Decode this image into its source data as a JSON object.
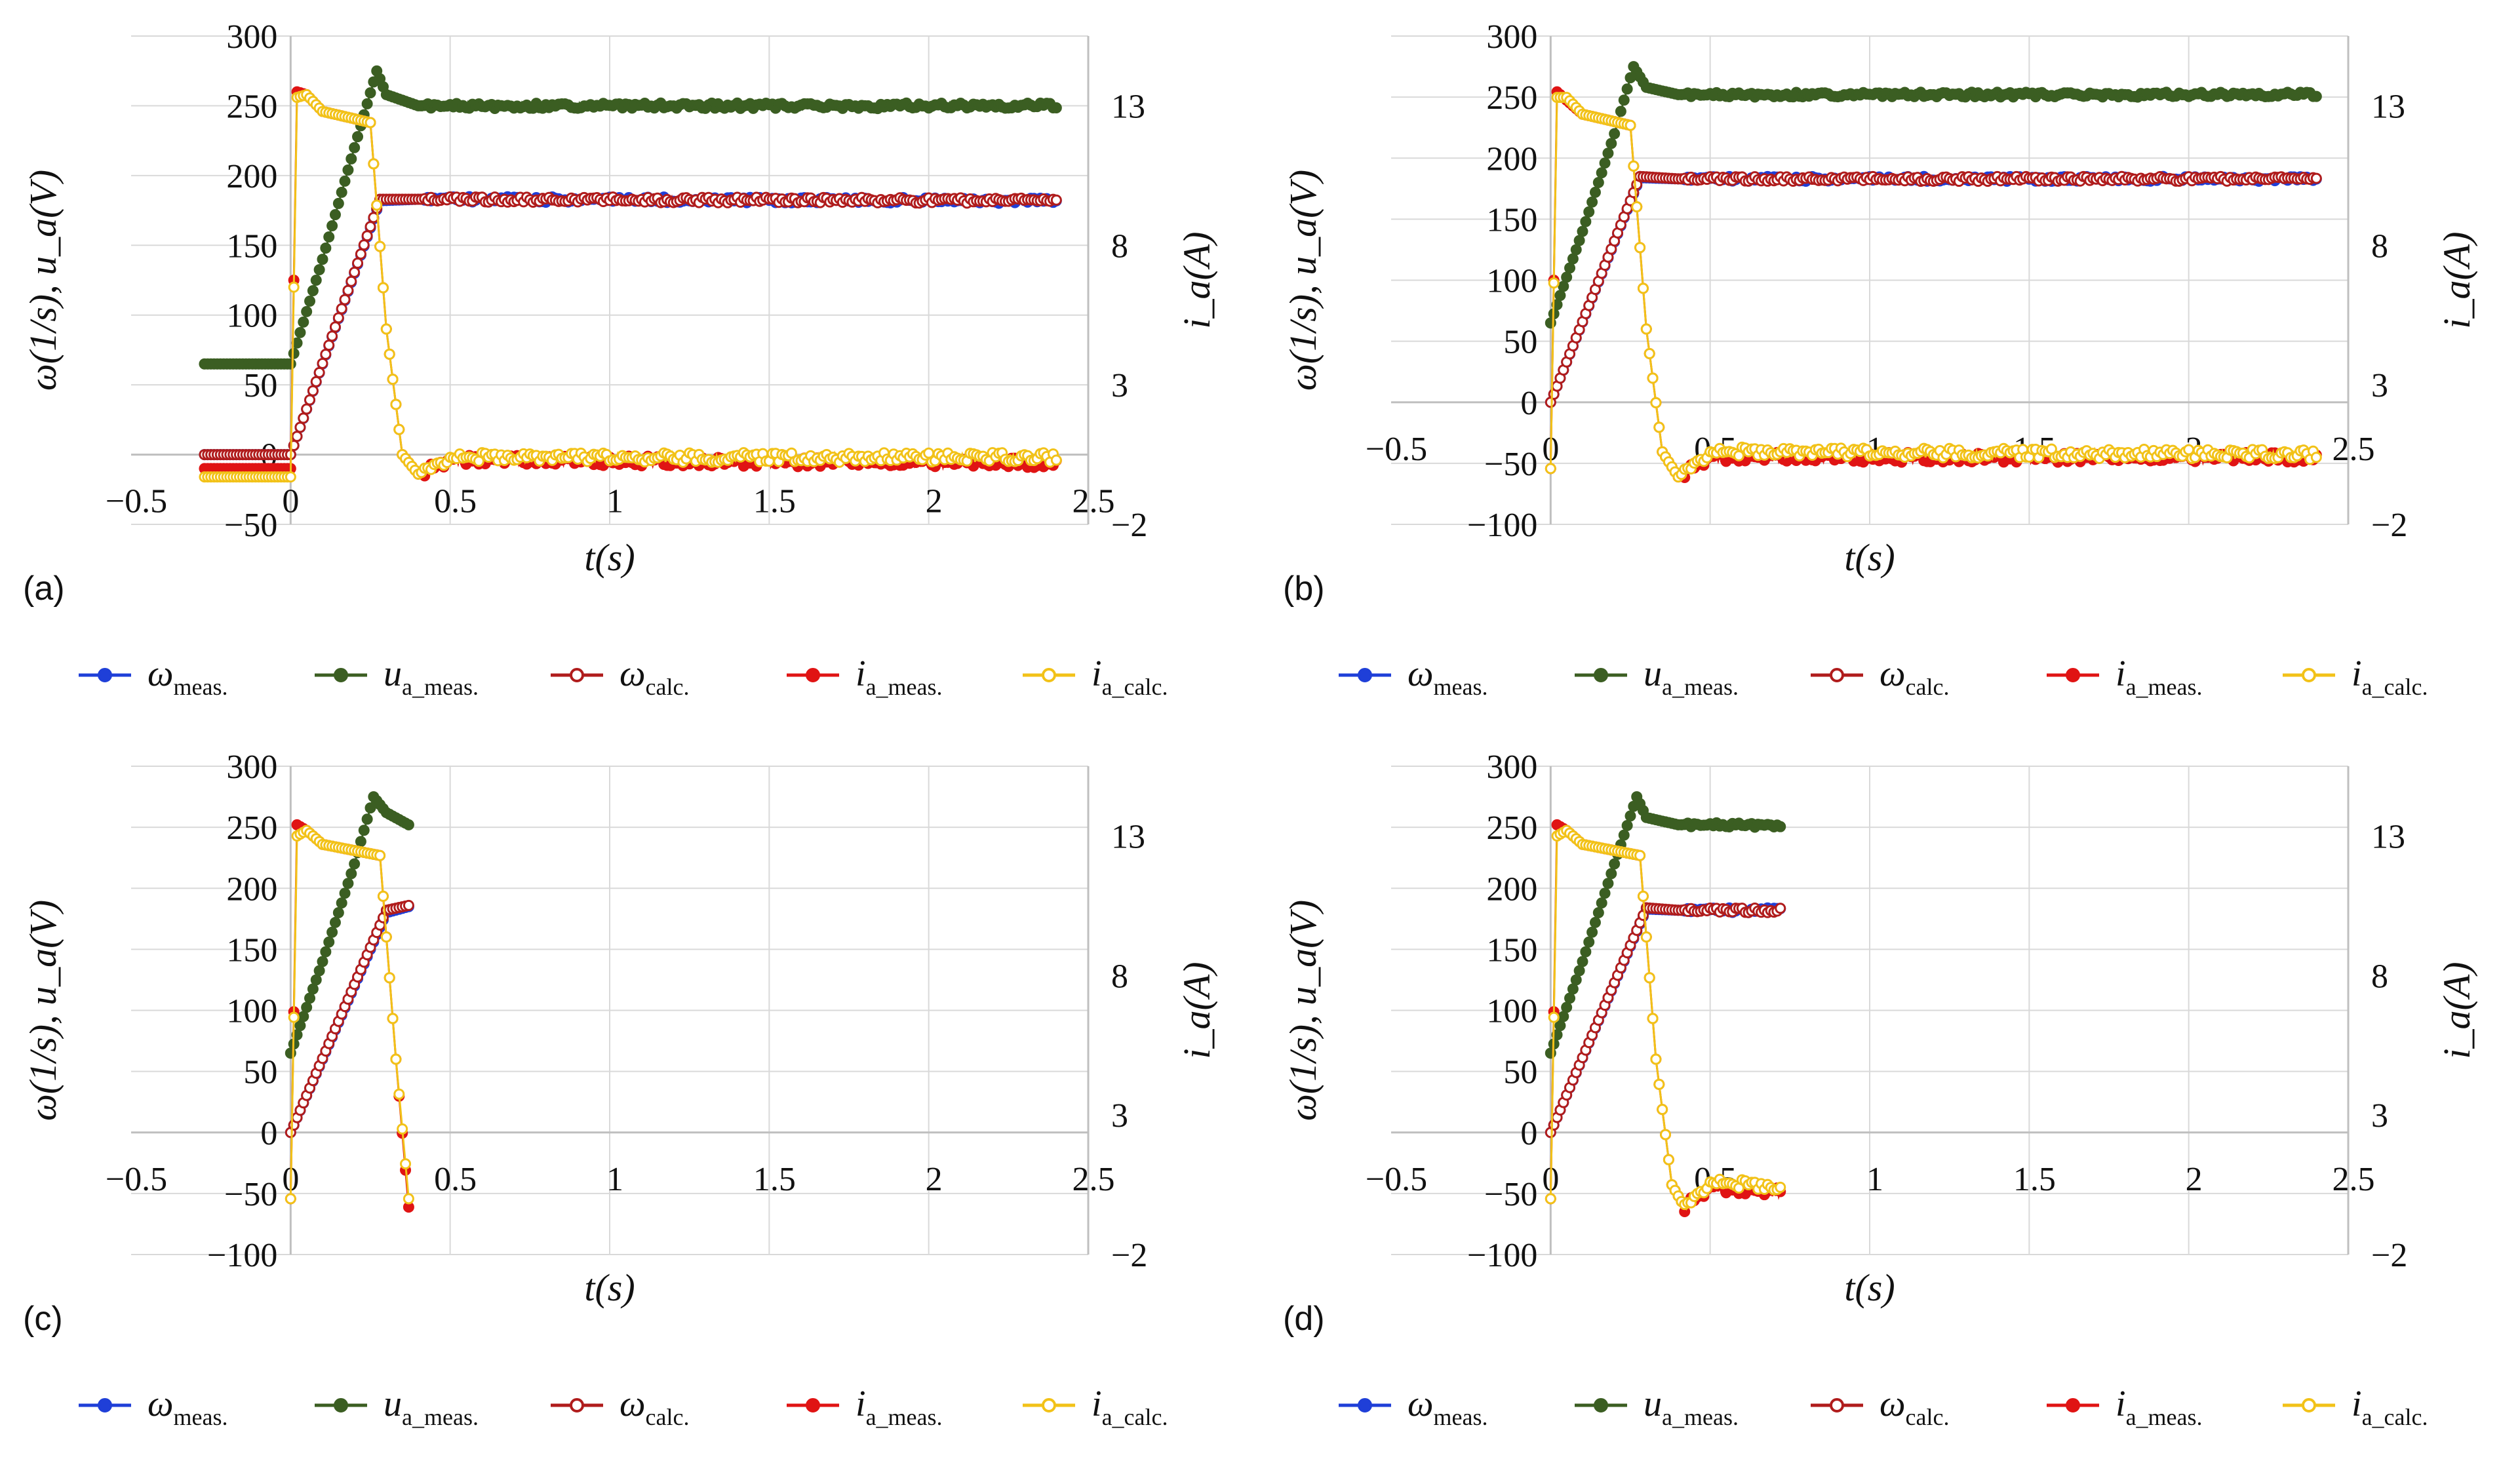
{
  "chart_data": [
    {
      "panel_label": "(a)",
      "type": "line",
      "xlabel": "t(s)",
      "ylabel": "ω(1/s), u_a(V)",
      "y2label": "i_a(A)",
      "xlim": [
        -0.5,
        2.5
      ],
      "ylim": [
        -50,
        300
      ],
      "y2lim": [
        -2,
        15.5
      ],
      "x_ticks": [
        "−0.5",
        "0",
        "0.5",
        "1",
        "1.5",
        "2",
        "2.5"
      ],
      "y_ticks": [
        "−50",
        "0",
        "50",
        "100",
        "150",
        "200",
        "250",
        "300"
      ],
      "y2_ticks": [
        "−2",
        "3",
        "8",
        "13"
      ],
      "t_end": 2.4,
      "t_start": -0.27,
      "series": [
        {
          "name": "ω_meas.",
          "color": "#1f3fd8",
          "axis": "left",
          "points": [
            [
              -0.27,
              0
            ],
            [
              0,
              0
            ],
            [
              0.28,
              182
            ],
            [
              0.4,
              183
            ],
            [
              2.4,
              182
            ]
          ]
        },
        {
          "name": "u_a_meas.",
          "color": "#3b5e22",
          "axis": "left",
          "points": [
            [
              0,
              65
            ],
            [
              0.1,
              140
            ],
            [
              0.2,
              220
            ],
            [
              0.27,
              275
            ],
            [
              0.3,
              258
            ],
            [
              0.4,
              250
            ],
            [
              2.4,
              250
            ]
          ]
        },
        {
          "name": "ω_calc.",
          "color": "#b01c1c",
          "axis": "left",
          "points": [
            [
              -0.27,
              0
            ],
            [
              0,
              0
            ],
            [
              0.28,
              183
            ],
            [
              0.4,
              183
            ],
            [
              2.4,
              182
            ]
          ]
        },
        {
          "name": "i_a_meas.",
          "color": "#e01414",
          "axis": "right",
          "points": [
            [
              -0.27,
              0
            ],
            [
              0,
              0
            ],
            [
              0.02,
              13.5
            ],
            [
              0.05,
              13.4
            ],
            [
              0.1,
              12.8
            ],
            [
              0.25,
              12.4
            ],
            [
              0.3,
              5.0
            ],
            [
              0.35,
              0.5
            ],
            [
              0.4,
              -0.2
            ],
            [
              0.5,
              0.3
            ],
            [
              2.4,
              0.2
            ]
          ]
        },
        {
          "name": "i_a_calc.",
          "color": "#f2c218",
          "axis": "right",
          "points": [
            [
              -0.27,
              -0.3
            ],
            [
              0,
              -0.3
            ],
            [
              0.02,
              13.3
            ],
            [
              0.05,
              13.4
            ],
            [
              0.1,
              12.8
            ],
            [
              0.25,
              12.4
            ],
            [
              0.3,
              5.0
            ],
            [
              0.35,
              0.5
            ],
            [
              0.4,
              -0.2
            ],
            [
              0.5,
              0.4
            ],
            [
              2.4,
              0.4
            ]
          ]
        }
      ]
    },
    {
      "panel_label": "(b)",
      "type": "line",
      "xlabel": "t(s)",
      "ylabel": "ω(1/s), u_a(V)",
      "y2label": "i_a(A)",
      "xlim": [
        -0.5,
        2.5
      ],
      "ylim": [
        -100,
        300
      ],
      "y2lim": [
        -2,
        15.5
      ],
      "x_ticks": [
        "−0.5",
        "0",
        "0.5",
        "1",
        "1.5",
        "2",
        "2.5"
      ],
      "y_ticks": [
        "−100",
        "−50",
        "0",
        "50",
        "100",
        "150",
        "200",
        "250",
        "300"
      ],
      "y2_ticks": [
        "−2",
        "3",
        "8",
        "13"
      ],
      "t_end": 2.4,
      "t_start": 0,
      "series": [
        {
          "name": "ω_meas.",
          "color": "#1f3fd8",
          "axis": "left",
          "points": [
            [
              0,
              0
            ],
            [
              0.28,
              184
            ],
            [
              0.4,
              183
            ],
            [
              2.4,
              183
            ]
          ]
        },
        {
          "name": "u_a_meas.",
          "color": "#3b5e22",
          "axis": "left",
          "points": [
            [
              0,
              65
            ],
            [
              0.1,
              140
            ],
            [
              0.2,
              220
            ],
            [
              0.26,
              275
            ],
            [
              0.3,
              258
            ],
            [
              0.4,
              252
            ],
            [
              2.4,
              252
            ]
          ]
        },
        {
          "name": "ω_calc.",
          "color": "#b01c1c",
          "axis": "left",
          "points": [
            [
              0,
              0
            ],
            [
              0.28,
              185
            ],
            [
              0.4,
              183
            ],
            [
              2.4,
              183
            ]
          ]
        },
        {
          "name": "i_a_meas.",
          "color": "#e01414",
          "axis": "right",
          "points": [
            [
              0,
              0
            ],
            [
              0.02,
              13.5
            ],
            [
              0.05,
              13.2
            ],
            [
              0.1,
              12.7
            ],
            [
              0.25,
              12.3
            ],
            [
              0.3,
              5.0
            ],
            [
              0.35,
              0.6
            ],
            [
              0.4,
              -0.3
            ],
            [
              0.5,
              0.4
            ],
            [
              2.4,
              0.4
            ]
          ]
        },
        {
          "name": "i_a_calc.",
          "color": "#f2c218",
          "axis": "right",
          "points": [
            [
              0,
              0
            ],
            [
              0.02,
              13.3
            ],
            [
              0.05,
              13.3
            ],
            [
              0.1,
              12.7
            ],
            [
              0.25,
              12.3
            ],
            [
              0.3,
              5.0
            ],
            [
              0.35,
              0.6
            ],
            [
              0.4,
              -0.3
            ],
            [
              0.5,
              0.6
            ],
            [
              2.4,
              0.5
            ]
          ]
        }
      ]
    },
    {
      "panel_label": "(c)",
      "type": "line",
      "xlabel": "t(s)",
      "ylabel": "ω(1/s), u_a(V)",
      "y2label": "i_a(A)",
      "xlim": [
        -0.5,
        2.5
      ],
      "ylim": [
        -100,
        300
      ],
      "y2lim": [
        -2,
        15.5
      ],
      "x_ticks": [
        "−0.5",
        "0",
        "0.5",
        "1",
        "1.5",
        "2",
        "2.5"
      ],
      "y_ticks": [
        "−100",
        "−50",
        "0",
        "50",
        "100",
        "150",
        "200",
        "250",
        "300"
      ],
      "y2_ticks": [
        "−2",
        "3",
        "8",
        "13"
      ],
      "t_end": 0.37,
      "t_start": 0,
      "series": [
        {
          "name": "ω_meas.",
          "color": "#1f3fd8",
          "axis": "left",
          "points": [
            [
              0,
              0
            ],
            [
              0.3,
              180
            ],
            [
              0.37,
              185
            ]
          ]
        },
        {
          "name": "u_a_meas.",
          "color": "#3b5e22",
          "axis": "left",
          "points": [
            [
              0,
              65
            ],
            [
              0.1,
              140
            ],
            [
              0.2,
              220
            ],
            [
              0.26,
              275
            ],
            [
              0.3,
              262
            ],
            [
              0.37,
              252
            ]
          ]
        },
        {
          "name": "ω_calc.",
          "color": "#b01c1c",
          "axis": "left",
          "points": [
            [
              0,
              0
            ],
            [
              0.3,
              182
            ],
            [
              0.37,
              186
            ]
          ]
        },
        {
          "name": "i_a_meas.",
          "color": "#e01414",
          "axis": "right",
          "points": [
            [
              0,
              0
            ],
            [
              0.02,
              13.4
            ],
            [
              0.05,
              13.2
            ],
            [
              0.1,
              12.7
            ],
            [
              0.28,
              12.3
            ],
            [
              0.33,
              5.0
            ],
            [
              0.37,
              -0.3
            ]
          ]
        },
        {
          "name": "i_a_calc.",
          "color": "#f2c218",
          "axis": "right",
          "points": [
            [
              0,
              0
            ],
            [
              0.02,
              13.0
            ],
            [
              0.05,
              13.2
            ],
            [
              0.1,
              12.7
            ],
            [
              0.28,
              12.3
            ],
            [
              0.33,
              5.0
            ],
            [
              0.37,
              0.0
            ]
          ]
        }
      ]
    },
    {
      "panel_label": "(d)",
      "type": "line",
      "xlabel": "t(s)",
      "ylabel": "ω(1/s), u_a(V)",
      "y2label": "i_a(A)",
      "xlim": [
        -0.5,
        2.5
      ],
      "ylim": [
        -100,
        300
      ],
      "y2lim": [
        -2,
        15.5
      ],
      "x_ticks": [
        "−0.5",
        "0",
        "0.5",
        "1",
        "1.5",
        "2",
        "2.5"
      ],
      "y_ticks": [
        "−100",
        "−50",
        "0",
        "50",
        "100",
        "150",
        "200",
        "250",
        "300"
      ],
      "y2_ticks": [
        "−2",
        "3",
        "8",
        "13"
      ],
      "t_end": 0.72,
      "t_start": 0,
      "series": [
        {
          "name": "ω_meas.",
          "color": "#1f3fd8",
          "axis": "left",
          "points": [
            [
              0,
              0
            ],
            [
              0.3,
              183
            ],
            [
              0.4,
              182
            ],
            [
              0.72,
              182
            ]
          ]
        },
        {
          "name": "u_a_meas.",
          "color": "#3b5e22",
          "axis": "left",
          "points": [
            [
              0,
              65
            ],
            [
              0.1,
              140
            ],
            [
              0.2,
              220
            ],
            [
              0.27,
              275
            ],
            [
              0.3,
              258
            ],
            [
              0.4,
              252
            ],
            [
              0.72,
              252
            ]
          ]
        },
        {
          "name": "ω_calc.",
          "color": "#b01c1c",
          "axis": "left",
          "points": [
            [
              0,
              0
            ],
            [
              0.3,
              184
            ],
            [
              0.4,
              182
            ],
            [
              0.72,
              182
            ]
          ]
        },
        {
          "name": "i_a_meas.",
          "color": "#e01414",
          "axis": "right",
          "points": [
            [
              0,
              0
            ],
            [
              0.02,
              13.4
            ],
            [
              0.05,
              13.2
            ],
            [
              0.1,
              12.7
            ],
            [
              0.28,
              12.3
            ],
            [
              0.33,
              5.0
            ],
            [
              0.38,
              0.5
            ],
            [
              0.42,
              -0.3
            ],
            [
              0.5,
              0.4
            ],
            [
              0.72,
              0.2
            ]
          ]
        },
        {
          "name": "i_a_calc.",
          "color": "#f2c218",
          "axis": "right",
          "points": [
            [
              0,
              0
            ],
            [
              0.02,
              13.0
            ],
            [
              0.05,
              13.2
            ],
            [
              0.1,
              12.7
            ],
            [
              0.28,
              12.3
            ],
            [
              0.33,
              5.0
            ],
            [
              0.38,
              0.5
            ],
            [
              0.42,
              -0.3
            ],
            [
              0.5,
              0.6
            ],
            [
              0.72,
              0.4
            ]
          ]
        }
      ]
    }
  ],
  "legend": [
    {
      "symbol": "ω",
      "sub": "meas.",
      "color": "#1f3fd8",
      "marker": "filled"
    },
    {
      "symbol": "u",
      "sub": "a_meas.",
      "color": "#3b5e22",
      "marker": "filled"
    },
    {
      "symbol": "ω",
      "sub": "calc.",
      "color": "#b01c1c",
      "marker": "open"
    },
    {
      "symbol": "i",
      "sub": "a_meas.",
      "color": "#e01414",
      "marker": "filled"
    },
    {
      "symbol": "i",
      "sub": "a_calc.",
      "color": "#f2c218",
      "marker": "open"
    }
  ]
}
